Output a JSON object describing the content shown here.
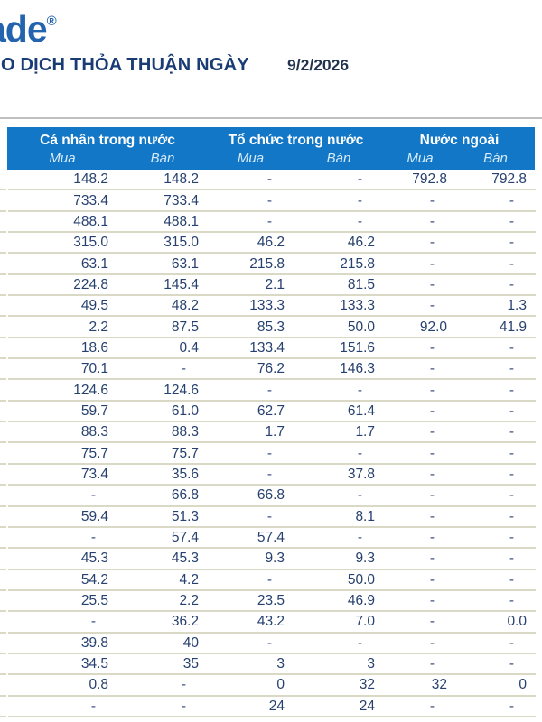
{
  "logo": {
    "text": "ade",
    "reg": "®"
  },
  "header": {
    "title": "O DỊCH THỎA THUẬN NGÀY",
    "date": "9/2/2026"
  },
  "table": {
    "groups": [
      {
        "label": "Cá nhân trong nước"
      },
      {
        "label": "Tổ chức trong nước"
      },
      {
        "label": "Nước ngoài"
      }
    ],
    "subheaders": [
      "Mua",
      "Bán",
      "Mua",
      "Bán",
      "Mua",
      "Bán"
    ],
    "rows": [
      [
        "148.2",
        "148.2",
        "-",
        "-",
        "792.8",
        "792.8"
      ],
      [
        "733.4",
        "733.4",
        "-",
        "-",
        "-",
        "-"
      ],
      [
        "488.1",
        "488.1",
        "-",
        "-",
        "-",
        "-"
      ],
      [
        "315.0",
        "315.0",
        "46.2",
        "46.2",
        "-",
        "-"
      ],
      [
        "63.1",
        "63.1",
        "215.8",
        "215.8",
        "-",
        "-"
      ],
      [
        "224.8",
        "145.4",
        "2.1",
        "81.5",
        "-",
        "-"
      ],
      [
        "49.5",
        "48.2",
        "133.3",
        "133.3",
        "-",
        "1.3"
      ],
      [
        "2.2",
        "87.5",
        "85.3",
        "50.0",
        "92.0",
        "41.9"
      ],
      [
        "18.6",
        "0.4",
        "133.4",
        "151.6",
        "-",
        "-"
      ],
      [
        "70.1",
        "-",
        "76.2",
        "146.3",
        "-",
        "-"
      ],
      [
        "124.6",
        "124.6",
        "-",
        "-",
        "-",
        "-"
      ],
      [
        "59.7",
        "61.0",
        "62.7",
        "61.4",
        "-",
        "-"
      ],
      [
        "88.3",
        "88.3",
        "1.7",
        "1.7",
        "-",
        "-"
      ],
      [
        "75.7",
        "75.7",
        "-",
        "-",
        "-",
        "-"
      ],
      [
        "73.4",
        "35.6",
        "-",
        "37.8",
        "-",
        "-"
      ],
      [
        "-",
        "66.8",
        "66.8",
        "-",
        "-",
        "-"
      ],
      [
        "59.4",
        "51.3",
        "-",
        "8.1",
        "-",
        "-"
      ],
      [
        "-",
        "57.4",
        "57.4",
        "-",
        "-",
        "-"
      ],
      [
        "45.3",
        "45.3",
        "9.3",
        "9.3",
        "-",
        "-"
      ],
      [
        "54.2",
        "4.2",
        "-",
        "50.0",
        "-",
        "-"
      ],
      [
        "25.5",
        "2.2",
        "23.5",
        "46.9",
        "-",
        "-"
      ],
      [
        "-",
        "36.2",
        "43.2",
        "7.0",
        "-",
        "0.0"
      ],
      [
        "39.8",
        "40",
        "-",
        "-",
        "-",
        "-"
      ],
      [
        "34.5",
        "35",
        "3",
        "3",
        "-",
        "-"
      ],
      [
        "0.8",
        "-",
        "0",
        "32",
        "32",
        "0"
      ],
      [
        "-",
        "-",
        "24",
        "24",
        "-",
        "-"
      ]
    ]
  },
  "colors": {
    "header_bg": "#1277C6",
    "header_text": "#FFFFFF",
    "subheader_text": "#D8ECFA",
    "number_text": "#26406F",
    "row_border": "#DAD9C6",
    "title_text": "#1A3C74",
    "logo_blue": "#2463AE"
  }
}
